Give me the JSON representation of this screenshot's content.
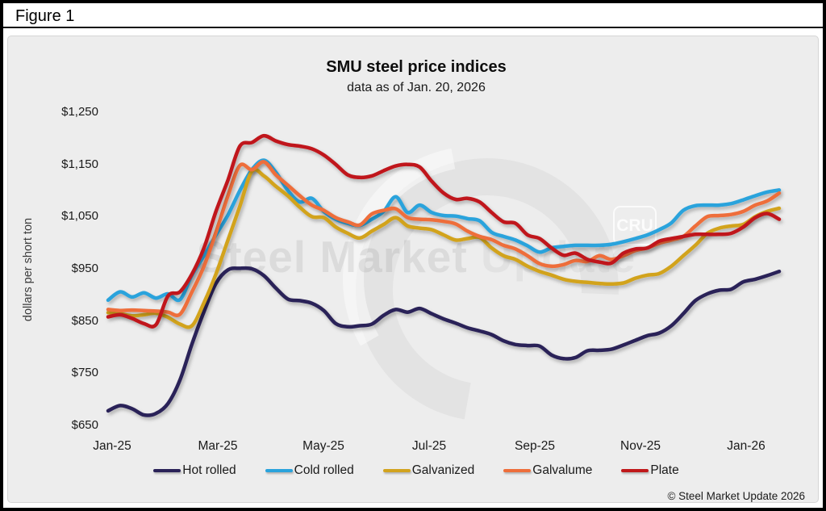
{
  "figure_label": "Figure 1",
  "chart": {
    "title": "SMU steel price indices",
    "subtitle": "data as of Jan. 20, 2026",
    "ylabel": "dollars per short ton",
    "copyright": "© Steel Market Update 2026"
  },
  "watermark": {
    "text_bold": "Steel Market",
    "text_light": "Update",
    "badge": "CRU"
  },
  "colors": {
    "panel_background": "#ededed",
    "frame": "#000000",
    "hot_rolled": "#2a2258",
    "cold_rolled": "#2aa3dc",
    "galvanized": "#d2a31e",
    "galvalume": "#ee6e3b",
    "plate": "#c0181a"
  },
  "chart_data": {
    "type": "line",
    "title": "SMU steel price indices",
    "subtitle": "data as of Jan. 20, 2026",
    "ylabel": "dollars per short ton",
    "ylim": [
      650,
      1250
    ],
    "grid": false,
    "legend_position": "bottom",
    "x_unit": "weekly, Jan 2025 through Jan 20, 2026",
    "y_ticks": [
      {
        "label": "$1,250",
        "value": 1250
      },
      {
        "label": "$1,150",
        "value": 1150
      },
      {
        "label": "$1,050",
        "value": 1050
      },
      {
        "label": "$950",
        "value": 950
      },
      {
        "label": "$850",
        "value": 850
      },
      {
        "label": "$750",
        "value": 750
      },
      {
        "label": "$650",
        "value": 650
      }
    ],
    "x_ticks": [
      {
        "label": "Jan-25",
        "month": 0
      },
      {
        "label": "Mar-25",
        "month": 2
      },
      {
        "label": "May-25",
        "month": 4
      },
      {
        "label": "Jul-25",
        "month": 6
      },
      {
        "label": "Sep-25",
        "month": 8
      },
      {
        "label": "Nov-25",
        "month": 10
      },
      {
        "label": "Jan-26",
        "month": 12
      }
    ],
    "series": [
      {
        "name": "Hot rolled",
        "color": "#2a2258",
        "values": [
          678,
          688,
          682,
          670,
          673,
          692,
          737,
          806,
          868,
          922,
          948,
          951,
          950,
          937,
          913,
          892,
          889,
          884,
          870,
          845,
          839,
          841,
          844,
          861,
          872,
          867,
          874,
          864,
          854,
          846,
          837,
          831,
          824,
          812,
          805,
          803,
          802,
          785,
          778,
          780,
          793,
          794,
          796,
          804,
          813,
          822,
          827,
          841,
          864,
          889,
          902,
          909,
          911,
          925,
          930,
          937,
          945
        ]
      },
      {
        "name": "Cold rolled",
        "color": "#2aa3dc",
        "values": [
          890,
          906,
          896,
          904,
          894,
          902,
          891,
          938,
          975,
          1015,
          1053,
          1100,
          1140,
          1158,
          1135,
          1100,
          1078,
          1085,
          1060,
          1045,
          1037,
          1033,
          1045,
          1060,
          1088,
          1058,
          1072,
          1058,
          1052,
          1051,
          1046,
          1042,
          1020,
          1012,
          1005,
          994,
          982,
          990,
          993,
          995,
          995,
          995,
          997,
          1002,
          1008,
          1015,
          1025,
          1038,
          1062,
          1071,
          1072,
          1072,
          1075,
          1082,
          1090,
          1097,
          1101
        ]
      },
      {
        "name": "Galvanized",
        "color": "#d2a31e",
        "values": [
          866,
          864,
          860,
          862,
          865,
          857,
          844,
          841,
          885,
          940,
          1005,
          1070,
          1137,
          1128,
          1108,
          1090,
          1068,
          1050,
          1048,
          1030,
          1018,
          1009,
          1022,
          1035,
          1048,
          1032,
          1028,
          1025,
          1015,
          1005,
          1008,
          1010,
          990,
          975,
          968,
          955,
          945,
          938,
          930,
          926,
          924,
          922,
          921,
          923,
          932,
          938,
          941,
          955,
          975,
          995,
          1018,
          1028,
          1032,
          1035,
          1050,
          1060,
          1066
        ]
      },
      {
        "name": "Galvalume",
        "color": "#ee6e3b",
        "values": [
          872,
          870,
          871,
          870,
          869,
          867,
          863,
          906,
          955,
          1020,
          1090,
          1148,
          1140,
          1155,
          1130,
          1110,
          1090,
          1072,
          1062,
          1048,
          1040,
          1034,
          1055,
          1062,
          1065,
          1048,
          1045,
          1044,
          1041,
          1036,
          1022,
          1012,
          1006,
          995,
          988,
          975,
          960,
          955,
          958,
          966,
          964,
          975,
          968,
          975,
          985,
          990,
          999,
          1005,
          1012,
          1032,
          1050,
          1052,
          1054,
          1060,
          1072,
          1080,
          1095
        ]
      },
      {
        "name": "Plate",
        "color": "#c0181a",
        "values": [
          858,
          862,
          855,
          845,
          843,
          898,
          906,
          940,
          990,
          1060,
          1120,
          1185,
          1192,
          1205,
          1195,
          1188,
          1185,
          1180,
          1168,
          1150,
          1130,
          1125,
          1128,
          1138,
          1147,
          1150,
          1145,
          1118,
          1095,
          1083,
          1085,
          1078,
          1058,
          1040,
          1037,
          1015,
          1008,
          990,
          976,
          980,
          968,
          963,
          961,
          980,
          988,
          990,
          1003,
          1008,
          1012,
          1016,
          1016,
          1016,
          1018,
          1030,
          1048,
          1056,
          1045
        ]
      }
    ]
  }
}
